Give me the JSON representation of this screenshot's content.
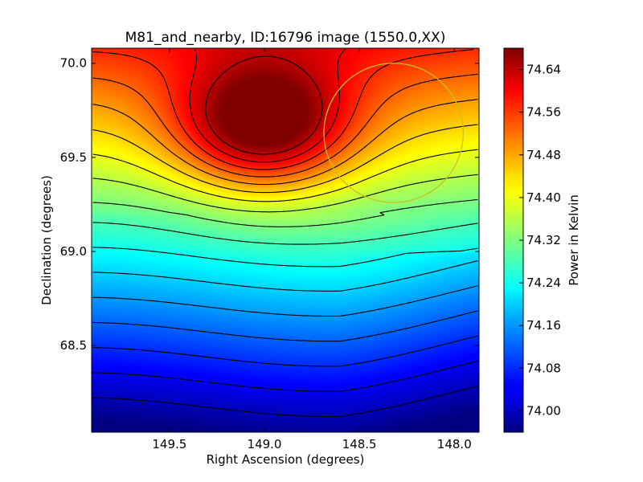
{
  "chart_data": {
    "type": "heatmap",
    "title": "M81_and_nearby, ID:16796 image (1550.0,XX)",
    "xlabel": "Right Ascension (degrees)",
    "ylabel": "Declination (degrees)",
    "colorbar_label": "Power in Kelvin",
    "colormap": "jet",
    "xlim": [
      149.91,
      147.87
    ],
    "ylim": [
      68.04,
      70.08
    ],
    "x_ticks": [
      149.5,
      149.0,
      148.5,
      148.0
    ],
    "x_tick_labels": [
      "149.5",
      "149.0",
      "148.5",
      "148.0"
    ],
    "y_ticks": [
      68.5,
      69.0,
      69.5,
      70.0
    ],
    "y_tick_labels": [
      "68.5",
      "69.0",
      "69.5",
      "70.0"
    ],
    "colorbar_range": [
      73.96,
      74.68
    ],
    "colorbar_ticks": [
      74.0,
      74.08,
      74.16,
      74.24,
      74.32,
      74.4,
      74.48,
      74.56,
      74.64
    ],
    "colorbar_tick_labels": [
      "74.00",
      "74.08",
      "74.16",
      "74.24",
      "74.32",
      "74.40",
      "74.48",
      "74.56",
      "74.64"
    ],
    "peak": {
      "ra": 149.01,
      "dec": 69.66,
      "value": 74.67
    },
    "contour_levels": [
      74.0,
      74.04,
      74.08,
      74.12,
      74.16,
      74.2,
      74.24,
      74.28,
      74.32,
      74.36,
      74.4,
      74.44,
      74.48,
      74.52,
      74.56,
      74.6,
      74.64
    ],
    "marker_circle": {
      "ra": 148.32,
      "dec": 69.63,
      "radius_deg": 0.37,
      "color": "#c8c020"
    },
    "grid": false
  }
}
